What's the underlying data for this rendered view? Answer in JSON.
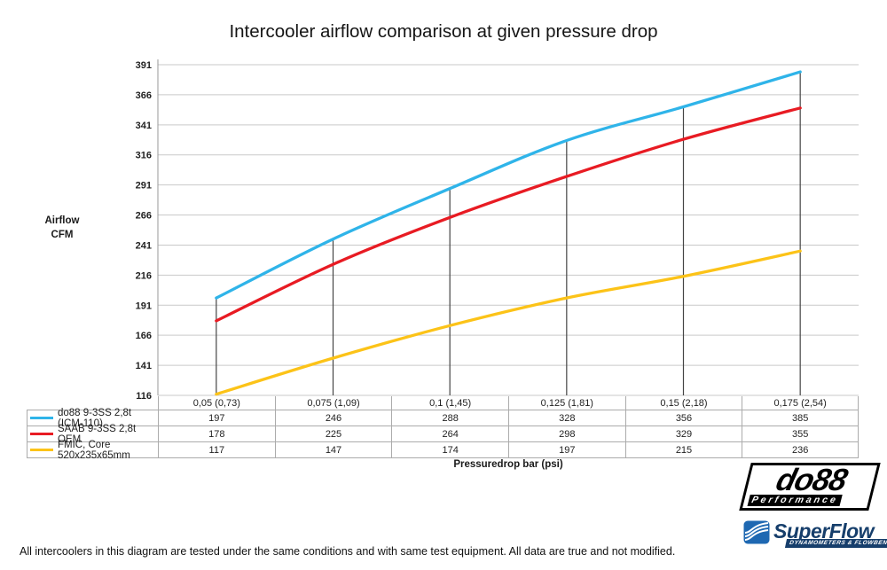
{
  "title": "Intercooler airflow comparison at given pressure drop",
  "y_axis_label": {
    "line1": "Airflow",
    "line2": "CFM"
  },
  "x_axis_label": "Pressuredrop bar (psi)",
  "footer_note": "All intercoolers in this diagram are tested under the same conditions and with same test equipment. All data are true and not modified.",
  "logos": {
    "do88": {
      "name": "do88",
      "subtitle": "Performance"
    },
    "superflow": {
      "name": "SuperFlow",
      "subtitle": "DYNAMOMETERS & FLOWBENCHES"
    }
  },
  "colors": {
    "gridline": "#c9c9c9",
    "axis_line": "#9a9a9a",
    "drop_line": "#454545",
    "table_border": "#ababab"
  },
  "chart_data": {
    "type": "line",
    "title": "Intercooler airflow comparison at given pressure drop",
    "xlabel": "Pressuredrop bar (psi)",
    "ylabel": "Airflow CFM",
    "categories": [
      "0,05 (0,73)",
      "0,075 (1,09)",
      "0,1 (1,45)",
      "0,125 (1,81)",
      "0,15 (2,18)",
      "0,175 (2,54)"
    ],
    "yticks": [
      116,
      141,
      166,
      191,
      216,
      241,
      266,
      291,
      316,
      341,
      366,
      391
    ],
    "ylim": [
      116,
      391
    ],
    "grid": true,
    "smoothed": true,
    "legend_position": "table-left",
    "series": [
      {
        "name": "do88 9-3SS 2,8t (ICM-110)",
        "color": "#2FB4E9",
        "values": [
          197,
          246,
          288,
          328,
          356,
          385
        ]
      },
      {
        "name": "SAAB 9-3SS 2,8t OEM",
        "color": "#E81B23",
        "values": [
          178,
          225,
          264,
          298,
          329,
          355
        ]
      },
      {
        "name": "FMIC, Core 520x235x65mm",
        "color": "#FCC318",
        "values": [
          117,
          147,
          174,
          197,
          215,
          236
        ]
      }
    ]
  }
}
